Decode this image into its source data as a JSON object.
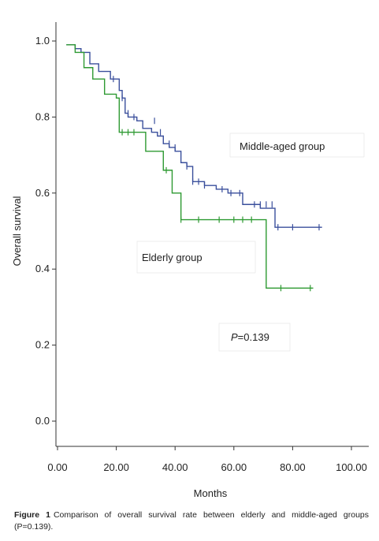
{
  "chart_data": {
    "type": "line",
    "step": true,
    "xlabel": "Months",
    "ylabel": "Overall survival",
    "xlim": [
      0,
      100
    ],
    "ylim": [
      0,
      1.0
    ],
    "xticks": [
      "0.00",
      "20.00",
      "40.00",
      "60.00",
      "80.00",
      "100.00"
    ],
    "yticks": [
      "0.0",
      "0.2",
      "0.4",
      "0.6",
      "0.8",
      "1.0"
    ],
    "grid": false,
    "series": [
      {
        "name": "Middle-aged group",
        "color": "#3a4f9c",
        "x": [
          3,
          6,
          8,
          11,
          14,
          18,
          21,
          22,
          23,
          24,
          27,
          29,
          32,
          34,
          36,
          38,
          40,
          42,
          44,
          46,
          50,
          54,
          58,
          63,
          69,
          74,
          90
        ],
        "y": [
          0.99,
          0.98,
          0.97,
          0.94,
          0.92,
          0.9,
          0.87,
          0.85,
          0.81,
          0.8,
          0.79,
          0.77,
          0.76,
          0.75,
          0.73,
          0.72,
          0.71,
          0.68,
          0.67,
          0.63,
          0.62,
          0.61,
          0.6,
          0.57,
          0.56,
          0.51,
          0.51
        ],
        "censored_x": [
          19,
          22,
          24,
          26,
          33,
          35,
          38,
          40,
          44,
          46,
          48,
          50,
          56,
          59,
          62,
          67,
          69,
          71,
          73,
          75,
          80,
          89
        ],
        "censored_y": [
          0.9,
          0.85,
          0.81,
          0.8,
          0.79,
          0.76,
          0.73,
          0.72,
          0.67,
          0.63,
          0.63,
          0.62,
          0.61,
          0.6,
          0.6,
          0.57,
          0.57,
          0.57,
          0.57,
          0.51,
          0.51,
          0.51
        ]
      },
      {
        "name": "Elderly group",
        "color": "#2e9a32",
        "x": [
          3,
          6,
          9,
          12,
          16,
          20,
          21,
          30,
          36,
          39,
          42,
          71,
          87
        ],
        "y": [
          0.99,
          0.97,
          0.93,
          0.9,
          0.86,
          0.85,
          0.76,
          0.71,
          0.66,
          0.6,
          0.53,
          0.35,
          0.35
        ],
        "censored_x": [
          22,
          24,
          26,
          37,
          42,
          48,
          55,
          60,
          63,
          66,
          76,
          86
        ],
        "censored_y": [
          0.76,
          0.76,
          0.76,
          0.66,
          0.53,
          0.53,
          0.53,
          0.53,
          0.53,
          0.53,
          0.35,
          0.35
        ]
      }
    ],
    "annotations": [
      {
        "text": "Middle-aged group"
      },
      {
        "text": "Elderly group"
      },
      {
        "text_prefix": "P",
        "text": "=0.139"
      }
    ]
  },
  "caption": {
    "label": "Figure 1",
    "text": "Comparison of overall survival rate between elderly and middle-aged groups (P=0.139)."
  }
}
